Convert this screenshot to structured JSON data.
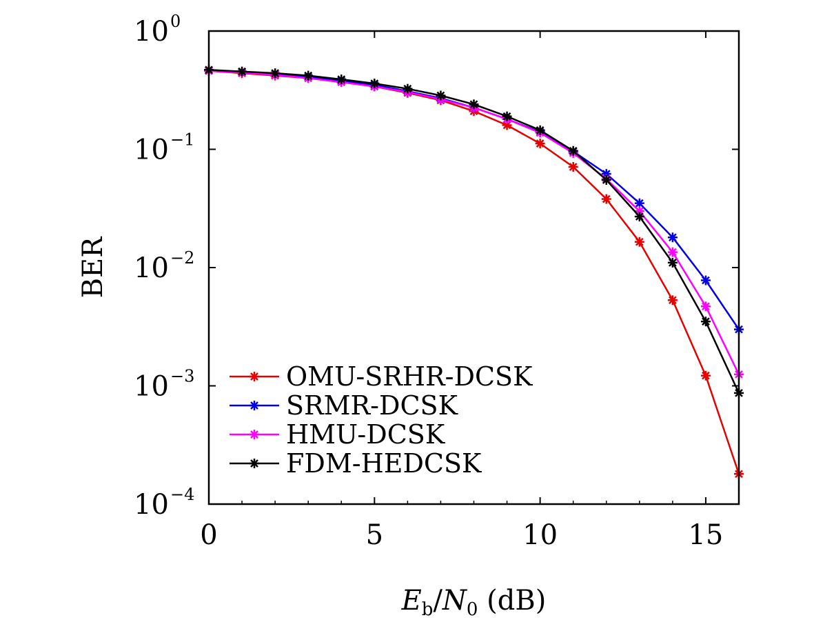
{
  "chart_data": {
    "type": "line",
    "title": "",
    "xlabel": {
      "base": "E",
      "sub1": "b",
      "slash": "/",
      "base2": "N",
      "sub2": "0",
      "unit": " (dB)"
    },
    "ylabel": "BER",
    "xlim": [
      0,
      16
    ],
    "ylim": [
      0.0001,
      1
    ],
    "yscale": "log",
    "grid": false,
    "legend_position": "bottom-left",
    "x_ticks": [
      0,
      5,
      10,
      15
    ],
    "x_tick_labels": [
      "0",
      "5",
      "10",
      "15"
    ],
    "y_ticks": [
      0,
      -1,
      -2,
      -3,
      -4
    ],
    "y_tick_labels": [
      {
        "base": "10",
        "exp": "0"
      },
      {
        "base": "10",
        "exp": "−1"
      },
      {
        "base": "10",
        "exp": "−2"
      },
      {
        "base": "10",
        "exp": "−3"
      },
      {
        "base": "10",
        "exp": "−4"
      }
    ],
    "x": [
      0,
      1,
      2,
      3,
      4,
      5,
      6,
      7,
      8,
      9,
      10,
      11,
      12,
      13,
      14,
      15,
      16
    ],
    "series": [
      {
        "name": "OMU-SRHR-DCSK",
        "color": "#e60000",
        "values": [
          0.46,
          0.44,
          0.42,
          0.4,
          0.37,
          0.34,
          0.3,
          0.26,
          0.21,
          0.16,
          0.112,
          0.071,
          0.038,
          0.0165,
          0.0053,
          0.00122,
          0.00018
        ]
      },
      {
        "name": "SRMR-DCSK",
        "color": "#0000e6",
        "values": [
          0.465,
          0.45,
          0.43,
          0.41,
          0.38,
          0.35,
          0.31,
          0.27,
          0.225,
          0.18,
          0.14,
          0.096,
          0.062,
          0.035,
          0.018,
          0.0078,
          0.003
        ]
      },
      {
        "name": "HMU-DCSK",
        "color": "#ff00ff",
        "values": [
          0.46,
          0.445,
          0.425,
          0.4,
          0.37,
          0.34,
          0.305,
          0.265,
          0.225,
          0.18,
          0.138,
          0.093,
          0.056,
          0.03,
          0.0135,
          0.0047,
          0.00125
        ]
      },
      {
        "name": "FDM-HEDCSK",
        "color": "#000000",
        "values": [
          0.47,
          0.455,
          0.44,
          0.42,
          0.39,
          0.36,
          0.325,
          0.285,
          0.24,
          0.19,
          0.145,
          0.097,
          0.055,
          0.027,
          0.011,
          0.0035,
          0.00087
        ]
      }
    ]
  }
}
